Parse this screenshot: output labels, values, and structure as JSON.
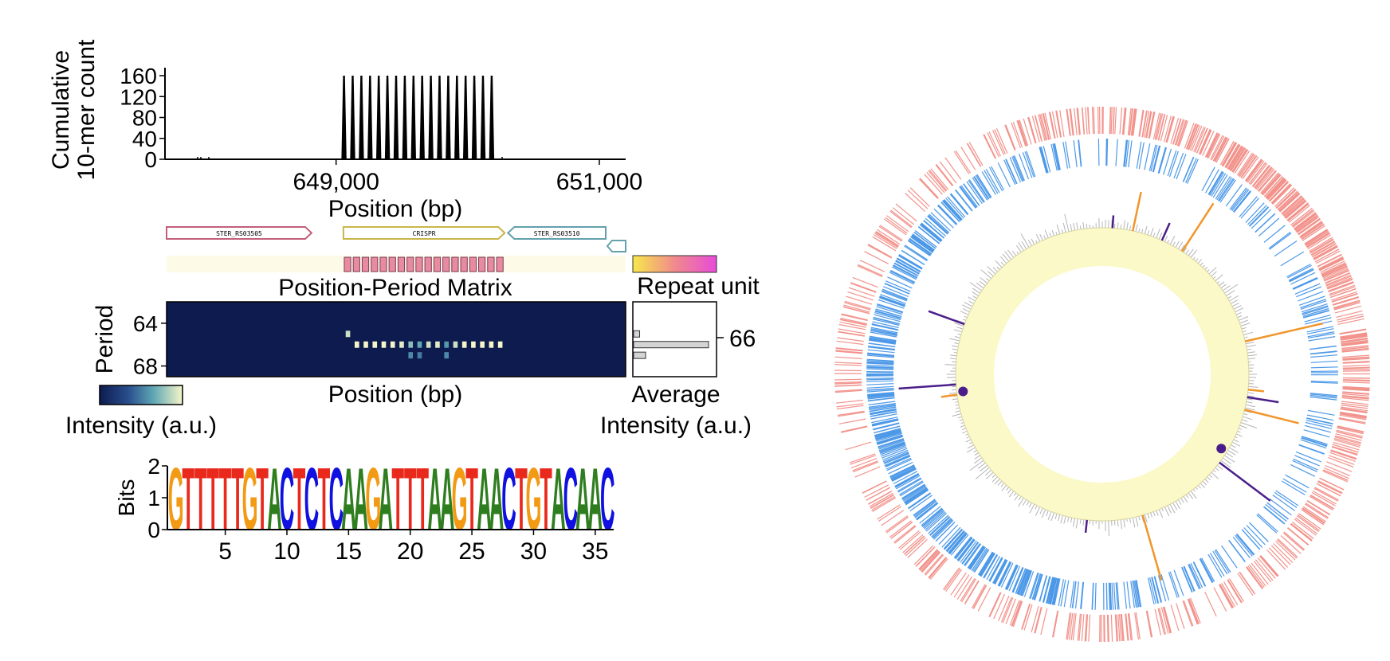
{
  "colors": {
    "forward_feature": "#f08078",
    "reverse_feature": "#3a8ee6",
    "gc_ring_fill": "#fbf9c8",
    "orange_spike": "#f0962a",
    "purple_spike": "#4a1e8a",
    "heatmap_low": "#0d1b4f",
    "heatmap_high": "#f7f6c8",
    "gene_pink": "#c2607a",
    "gene_olive": "#c9b64a",
    "gene_teal": "#63a1ab",
    "logo_A": "#2e7d1f",
    "logo_C": "#1010e0",
    "logo_G": "#f39a14",
    "logo_T": "#e8291c"
  },
  "chart_data": [
    {
      "id": "kmer",
      "type": "bar",
      "ylabel": [
        "Cumulative",
        "10-mer count"
      ],
      "xlabel": "Position (bp)",
      "yticks": [
        "0",
        "40",
        "80",
        "120",
        "160"
      ],
      "xticks": [
        "649,000",
        "651,000"
      ],
      "ylim": [
        0,
        170
      ],
      "xlim": [
        647700,
        651200
      ],
      "peak_height": 160,
      "peaks_start": 649060,
      "peaks_step": 66,
      "peaks_count": 18
    },
    {
      "id": "gene_track",
      "type": "table",
      "genes": [
        {
          "name": "STER_RS03505",
          "start": 647700,
          "end": 648815,
          "strand": "+",
          "color": "#c2607a"
        },
        {
          "name": "CRISPR",
          "start": 649060,
          "end": 650300,
          "strand": "+",
          "color": "#c9b64a"
        },
        {
          "name": "STER_RS03510",
          "start": 650325,
          "end": 651300,
          "strand": "-",
          "color": "#63a1ab"
        }
      ],
      "repeat_units_count": 18,
      "repeat_unit_label": "Repeat unit"
    },
    {
      "id": "matrix",
      "type": "heatmap",
      "title": "Position-Period Matrix",
      "ylabel": "Period",
      "xlabel": "Position (bp)",
      "yticks": [
        "64",
        "68"
      ],
      "colorbar_label": "Intensity (a.u.)",
      "bright_cells": [
        {
          "index": 0,
          "period": 65,
          "intensity": 0.9
        },
        {
          "index": 1,
          "period": 66,
          "intensity": 1.0
        },
        {
          "index": 2,
          "period": 66,
          "intensity": 1.0
        },
        {
          "index": 3,
          "period": 66,
          "intensity": 1.0
        },
        {
          "index": 4,
          "period": 66,
          "intensity": 1.0
        },
        {
          "index": 5,
          "period": 66,
          "intensity": 1.0
        },
        {
          "index": 6,
          "period": 66,
          "intensity": 0.95
        },
        {
          "index": 7,
          "period": 66,
          "intensity": 0.75
        },
        {
          "index": 8,
          "period": 66,
          "intensity": 0.65
        },
        {
          "index": 9,
          "period": 66,
          "intensity": 0.9
        },
        {
          "index": 10,
          "period": 66,
          "intensity": 0.95
        },
        {
          "index": 11,
          "period": 66,
          "intensity": 0.6
        },
        {
          "index": 12,
          "period": 66,
          "intensity": 0.9
        },
        {
          "index": 13,
          "period": 66,
          "intensity": 1.0
        },
        {
          "index": 14,
          "period": 66,
          "intensity": 1.0
        },
        {
          "index": 15,
          "period": 66,
          "intensity": 1.0
        },
        {
          "index": 16,
          "period": 66,
          "intensity": 1.0
        },
        {
          "index": 17,
          "period": 66,
          "intensity": 1.0
        }
      ],
      "lower_cells": [
        {
          "index": 7,
          "period": 67,
          "intensity": 0.55
        },
        {
          "index": 8,
          "period": 67,
          "intensity": 0.5
        },
        {
          "index": 11,
          "period": 67,
          "intensity": 0.55
        }
      ],
      "period_range": [
        62,
        69
      ]
    },
    {
      "id": "average",
      "type": "bar",
      "xlabel": [
        "Average",
        "Intensity (a.u.)"
      ],
      "annotated_period": "66",
      "bars": [
        {
          "period": 65,
          "value": 0.08
        },
        {
          "period": 66,
          "value": 1.0
        },
        {
          "period": 67,
          "value": 0.16
        }
      ]
    },
    {
      "id": "logo",
      "type": "bar",
      "ylabel": "Bits",
      "yticks": [
        "0",
        "1",
        "2"
      ],
      "xticks": [
        "5",
        "10",
        "15",
        "20",
        "25",
        "30",
        "35"
      ],
      "sequence": "GTTTTTGTACTCTCAAGATTTAAGTAACTGTACAAC",
      "bits": 2
    },
    {
      "id": "circos",
      "type": "scatter",
      "orange_spikes": [
        {
          "angle": 12,
          "length": 0.5
        },
        {
          "angle": 33,
          "length": 0.72
        },
        {
          "angle": 77,
          "length": 1.0
        },
        {
          "angle": 96,
          "length": 0.2
        },
        {
          "angle": 104,
          "length": 0.7
        },
        {
          "angle": 164,
          "length": 0.85
        },
        {
          "angle": 262,
          "length": 0.2
        }
      ],
      "purple_spikes": [
        {
          "angle": 4,
          "length": 0.2
        },
        {
          "angle": 24,
          "length": 0.3
        },
        {
          "angle": 99,
          "length": 0.5
        },
        {
          "angle": 127,
          "length": 1.0
        },
        {
          "angle": 186,
          "length": 0.2
        },
        {
          "angle": 266,
          "length": 0.9
        },
        {
          "angle": 290,
          "length": 0.6
        }
      ],
      "dots": [
        122,
        263
      ]
    }
  ]
}
